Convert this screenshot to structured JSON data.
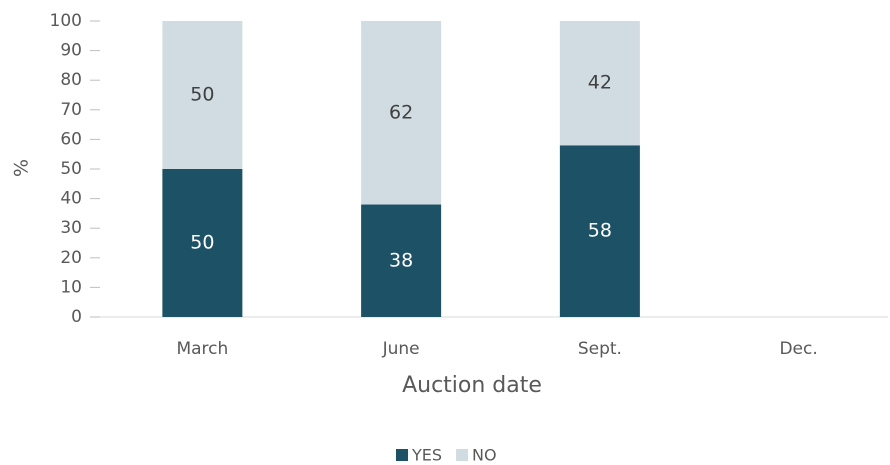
{
  "chart_data": {
    "type": "bar",
    "stacked": true,
    "x_label": "Auction date",
    "y_label": "%",
    "categories": [
      "March",
      "June",
      "Sept.",
      "Dec."
    ],
    "series": [
      {
        "name": "YES",
        "color": "#1d5166",
        "label_color": "#ffffff",
        "values": [
          50,
          38,
          58,
          null
        ]
      },
      {
        "name": "NO",
        "color": "#d0dce2",
        "label_color": "#404040",
        "values": [
          50,
          62,
          42,
          null
        ]
      }
    ],
    "ylim": [
      0,
      100
    ],
    "yticks": [
      0,
      10,
      20,
      30,
      40,
      50,
      60,
      70,
      80,
      90,
      100
    ],
    "legend": "bottom"
  }
}
